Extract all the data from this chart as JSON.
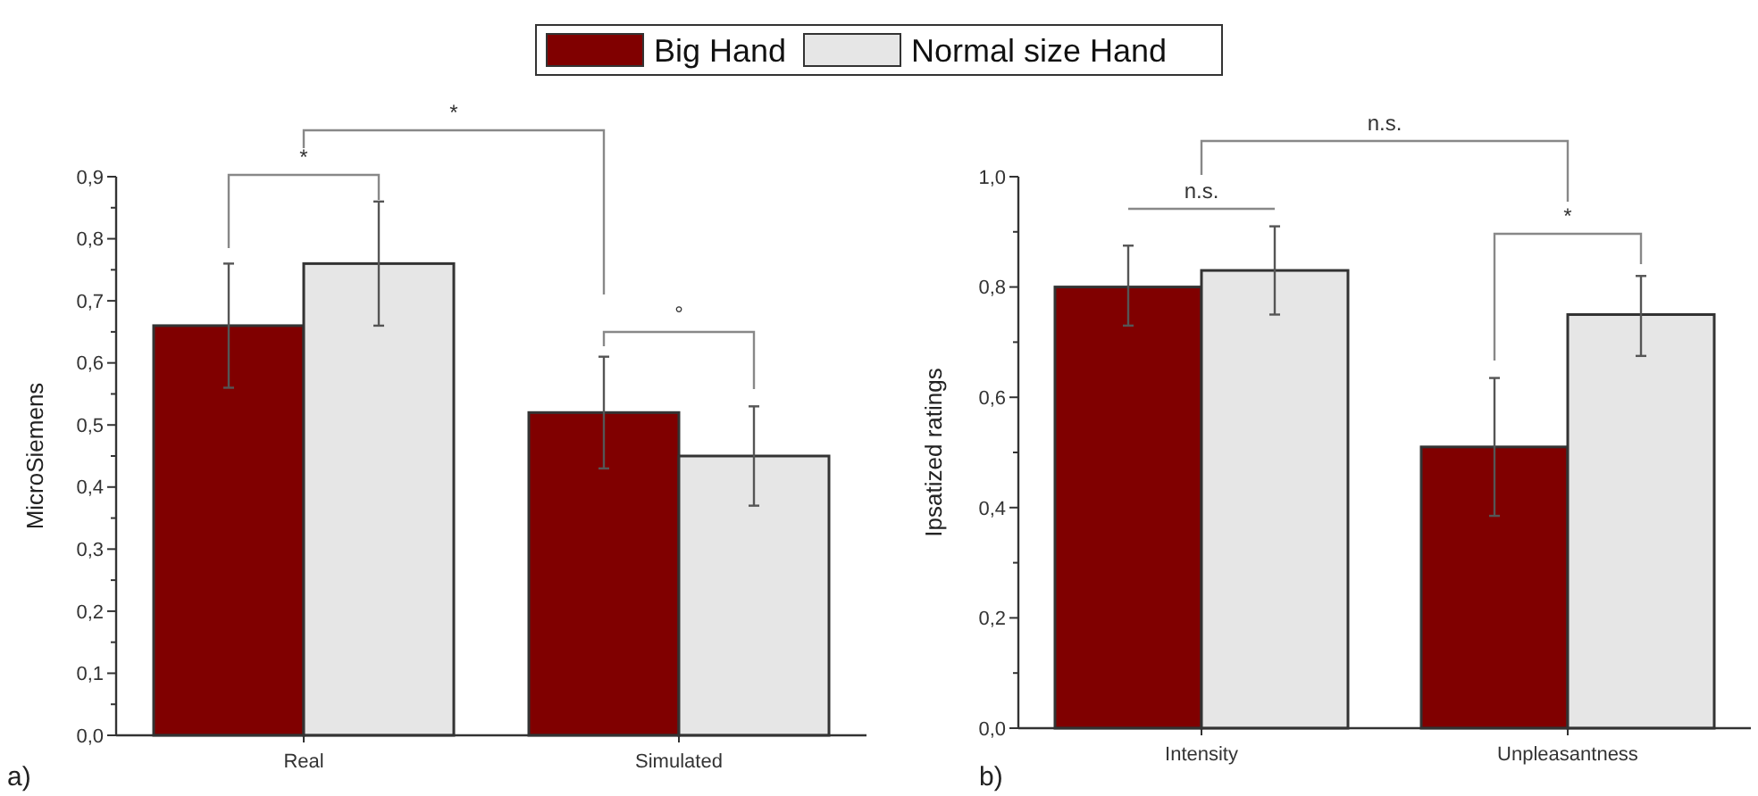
{
  "chart_data": [
    {
      "type": "bar",
      "ylabel": "MicroSiemens",
      "categories": [
        "Real",
        "Simulated"
      ],
      "legend": "top",
      "series": [
        {
          "name": "Big Hand",
          "color": "#800000",
          "values": [
            0.66,
            0.52
          ],
          "errors": [
            [
              0.56,
              0.76
            ],
            [
              0.43,
              0.61
            ]
          ]
        },
        {
          "name": "Normal size Hand",
          "color": "#e6e6e6",
          "values": [
            0.76,
            0.45
          ],
          "errors": [
            [
              0.66,
              0.86
            ],
            [
              0.37,
              0.53
            ]
          ]
        }
      ],
      "ylim": [
        0,
        0.9
      ],
      "yticks": [
        {
          "value": 0,
          "label": "0,0"
        },
        {
          "value": 0.05,
          "label": null
        },
        {
          "value": 0.1,
          "label": "0,1"
        },
        {
          "value": 0.15,
          "label": null
        },
        {
          "value": 0.2,
          "label": "0,2"
        },
        {
          "value": 0.25,
          "label": null
        },
        {
          "value": 0.3,
          "label": "0,3"
        },
        {
          "value": 0.35,
          "label": null
        },
        {
          "value": 0.4,
          "label": "0,4"
        },
        {
          "value": 0.45,
          "label": null
        },
        {
          "value": 0.5,
          "label": "0,5"
        },
        {
          "value": 0.55,
          "label": null
        },
        {
          "value": 0.6,
          "label": "0,6"
        },
        {
          "value": 0.65,
          "label": null
        },
        {
          "value": 0.7,
          "label": "0,7"
        },
        {
          "value": 0.75,
          "label": null
        },
        {
          "value": 0.8,
          "label": "0,8"
        },
        {
          "value": 0.85,
          "label": null
        },
        {
          "value": 0.9,
          "label": "0,9"
        }
      ],
      "annotations": [
        "a)",
        "*",
        "*",
        "°"
      ]
    },
    {
      "type": "bar",
      "ylabel": "Ipsatized ratings",
      "categories": [
        "Intensity",
        "Unpleasantness"
      ],
      "series": [
        {
          "color": "#800000",
          "values": [
            0.8,
            0.51
          ],
          "errors": [
            [
              0.73,
              0.875
            ],
            [
              0.385,
              0.635
            ]
          ]
        },
        {
          "color": "#e6e6e6",
          "values": [
            0.83,
            0.75
          ],
          "errors": [
            [
              0.75,
              0.91
            ],
            [
              0.675,
              0.82
            ]
          ]
        }
      ],
      "ylim": [
        0,
        1
      ],
      "yticks": [
        {
          "value": 0,
          "label": "0,0"
        },
        {
          "value": 0.1,
          "label": null
        },
        {
          "value": 0.2,
          "label": "0,2"
        },
        {
          "value": 0.3,
          "label": null
        },
        {
          "value": 0.4,
          "label": "0,4"
        },
        {
          "value": 0.5,
          "label": null
        },
        {
          "value": 0.6,
          "label": "0,6"
        },
        {
          "value": 0.7,
          "label": null
        },
        {
          "value": 0.8,
          "label": "0,8"
        },
        {
          "value": 0.9,
          "label": null
        },
        {
          "value": 1,
          "label": "1,0"
        }
      ],
      "annotations": [
        "b)",
        "n.s.",
        "n.s.",
        "*"
      ]
    }
  ]
}
